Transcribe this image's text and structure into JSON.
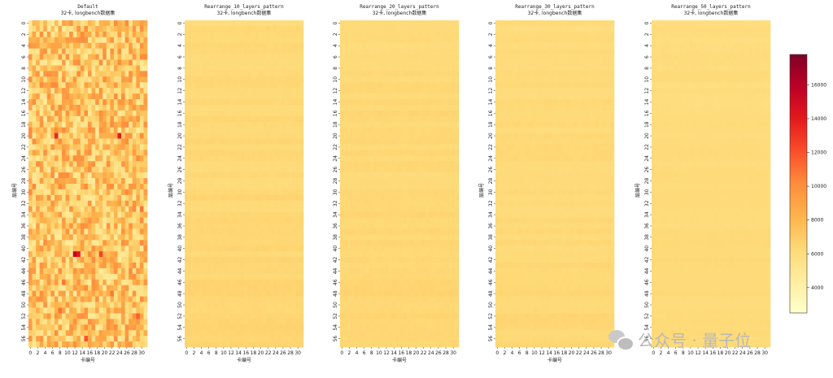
{
  "chart_data": {
    "type": "heatmap",
    "colormap": "YlOrRd",
    "x_ticks": [
      "0",
      "2",
      "4",
      "6",
      "8",
      "10",
      "12",
      "14",
      "16",
      "18",
      "20",
      "22",
      "24",
      "26",
      "28",
      "30"
    ],
    "y_ticks": [
      "0",
      "2",
      "4",
      "6",
      "8",
      "10",
      "12",
      "14",
      "16",
      "18",
      "20",
      "22",
      "24",
      "26",
      "28",
      "30",
      "32",
      "34",
      "36",
      "38",
      "40",
      "42",
      "44",
      "46",
      "48",
      "50",
      "52",
      "54",
      "56"
    ],
    "n_cols": 32,
    "n_rows": 58,
    "colorbar": {
      "range": [
        2500,
        17800
      ],
      "ticks": [
        "4000",
        "6000",
        "8000",
        "10000",
        "12000",
        "14000",
        "16000"
      ]
    },
    "panels": [
      {
        "title": "Default",
        "subtitle": "32卡, longbench数据集",
        "xlabel": "卡编号",
        "ylabel": "层编号",
        "mean": 7400,
        "spread": 2800,
        "hot_cells": [
          [
            20,
            7,
            13500
          ],
          [
            20,
            24,
            14000
          ],
          [
            41,
            12,
            15500
          ],
          [
            41,
            13,
            14000
          ],
          [
            41,
            19,
            12500
          ],
          [
            56,
            15,
            12000
          ],
          [
            51,
            8,
            11000
          ],
          [
            52,
            29,
            11500
          ],
          [
            33,
            30,
            11000
          ],
          [
            46,
            9,
            10800
          ],
          [
            48,
            22,
            10800
          ]
        ]
      },
      {
        "title": "Rearrange_10_layers_pattern",
        "subtitle": "32卡, longbench数据集",
        "xlabel": "卡编号",
        "ylabel": "层编号",
        "mean": 6200,
        "spread": 350
      },
      {
        "title": "Rearrange_20_layers_pattern",
        "subtitle": "32卡, longbench数据集",
        "xlabel": "卡编号",
        "ylabel": "",
        "mean": 6200,
        "spread": 350
      },
      {
        "title": "Rearrange_30_layers_pattern",
        "subtitle": "32卡, longbench数据集",
        "xlabel": "卡编号",
        "ylabel": "层编号",
        "mean": 6100,
        "spread": 300
      },
      {
        "title": "Rearrange_50_layers_pattern",
        "subtitle": "32卡, longbench数据集",
        "xlabel": "",
        "ylabel": "层编号",
        "mean": 6000,
        "spread": 250
      }
    ]
  },
  "watermark": {
    "text": "公众号 · 量子位",
    "icon": "wechat-icon"
  }
}
